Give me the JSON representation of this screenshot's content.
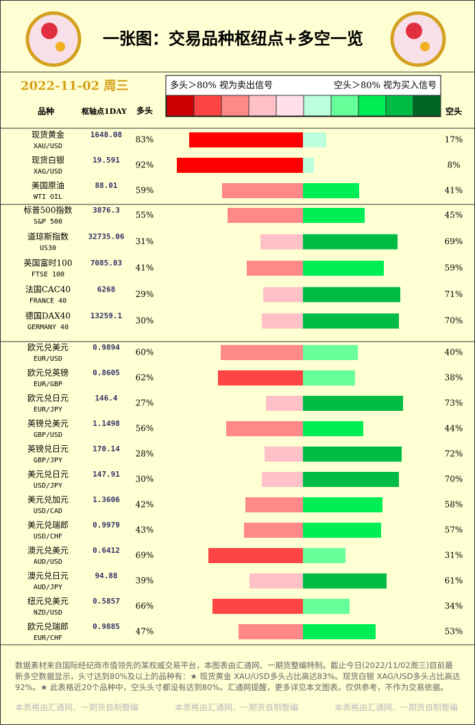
{
  "chart_data": {
    "type": "diverging_bar",
    "title": "一张图：交易品种枢纽点+多空一览",
    "date": "2022-11-02 周三",
    "legend_left": "多头＞80% 视为卖出信号",
    "legend_right": "空头＞80% 视为买入信号",
    "legend_colors": [
      "#cc0000",
      "#ff4444",
      "#ff8888",
      "#ffc0c8",
      "#ffe0e8",
      "#bbffdd",
      "#66ff99",
      "#00ee55",
      "#00bb44",
      "#006622"
    ],
    "column_name": "品种",
    "column_pivot": "枢轴点1DAY",
    "categories": [
      "现货黄金",
      "现货白银",
      "美国原油",
      "标普500指数",
      "道琼斯指数",
      "英国富时100",
      "法国CAC40",
      "德国DAX40",
      "欧元兑美元",
      "欧元兑英镑",
      "欧元兑日元",
      "英镑兑美元",
      "英镑兑日元",
      "美元兑日元",
      "美元兑加元",
      "美元兑瑞郎",
      "澳元兑美元",
      "澳元兑日元",
      "纽元兑美元",
      "欧元兑瑞郎"
    ],
    "codes": [
      "XAU/USD",
      "XAG/USD",
      "WTI OIL",
      "S&P 500",
      "US30",
      "FTSE 100",
      "FRANCE 40",
      "GERMANY 40",
      "EUR/USD",
      "EUR/GBP",
      "EUR/JPY",
      "GBP/USD",
      "GBP/JPY",
      "USD/JPY",
      "USD/CAD",
      "USD/CHF",
      "AUD/USD",
      "AUD/JPY",
      "NZD/USD",
      "EUR/CHF"
    ],
    "pivots": [
      1648.08,
      19.591,
      88.01,
      3876.3,
      32735.06,
      7085.83,
      6268,
      13259.1,
      0.9894,
      0.8605,
      146.4,
      1.1498,
      170.14,
      147.91,
      1.3606,
      0.9979,
      0.6412,
      94.88,
      0.5857,
      0.9885
    ],
    "series": [
      {
        "name": "多头",
        "values": [
          83,
          92,
          59,
          55,
          31,
          41,
          29,
          30,
          60,
          62,
          27,
          56,
          28,
          30,
          42,
          43,
          69,
          39,
          66,
          47
        ],
        "value_labels": [
          "83%",
          "92%",
          "59%",
          "55%",
          "31%",
          "41%",
          "29%",
          "30%",
          "60%",
          "62%",
          "27%",
          "56%",
          "28%",
          "30%",
          "42%",
          "43%",
          "69%",
          "39%",
          "66%",
          "47%"
        ],
        "colors": [
          "#ff0000",
          "#ff0000",
          "#ff8888",
          "#ff8888",
          "#ffc0c8",
          "#ff8888",
          "#ffc0c8",
          "#ffc0c8",
          "#ff8888",
          "#ff4444",
          "#ffc0c8",
          "#ff8888",
          "#ffc0c8",
          "#ffc0c8",
          "#ff8888",
          "#ff8888",
          "#ff4444",
          "#ffc0c8",
          "#ff4444",
          "#ff8888"
        ]
      },
      {
        "name": "空头",
        "values": [
          17,
          8,
          41,
          45,
          69,
          59,
          71,
          70,
          40,
          38,
          73,
          44,
          72,
          70,
          58,
          57,
          31,
          61,
          34,
          53
        ],
        "value_labels": [
          "17%",
          "8%",
          "41%",
          "45%",
          "69%",
          "59%",
          "71%",
          "70%",
          "40%",
          "38%",
          "73%",
          "44%",
          "72%",
          "70%",
          "58%",
          "57%",
          "31%",
          "61%",
          "34%",
          "53%"
        ],
        "colors": [
          "#bbffdd",
          "#bbffdd",
          "#00ee55",
          "#00ee55",
          "#00bb44",
          "#00ee55",
          "#00bb44",
          "#00bb44",
          "#66ff99",
          "#66ff99",
          "#00bb44",
          "#00ee55",
          "#00bb44",
          "#00bb44",
          "#00ee55",
          "#00ee55",
          "#66ff99",
          "#00bb44",
          "#66ff99",
          "#00ee55"
        ]
      }
    ],
    "note": "数据素材来自国际经纪商市值领先的某权威交易平台，本图表由汇通网、一期货整编特制。截止今日(2022/11/02周三)目前最新多空数据显示，头寸达到80%及以上的品种有：★ 现货黄金 XAU/USD多头占比高达83%。现货白银 XAG/USD多头占比高达92%。★ 此表格近20个品种中，空头头寸都没有达到80%。汇通网提醒，更多详见本文图表。仅供参考，不作为交易依据。",
    "watermarks": [
      "本表格由汇通网、一期货自制整编",
      "本表格由汇通网、一期货自制整编",
      "本表格由汇通网、一期货自制整编"
    ]
  }
}
